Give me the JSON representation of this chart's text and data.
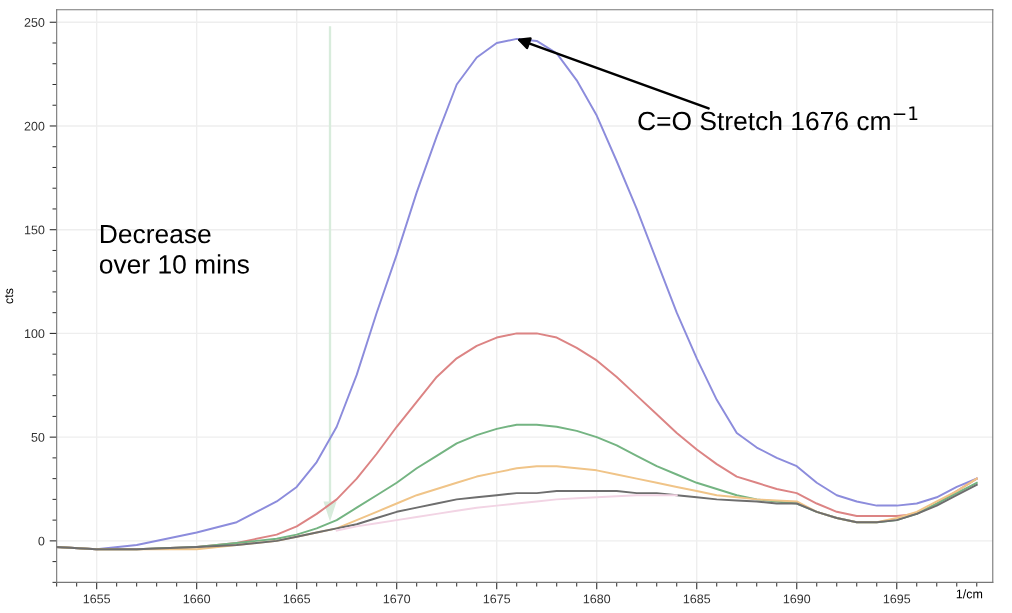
{
  "chart_data": {
    "type": "line",
    "xlabel": "1/cm",
    "ylabel": "cts",
    "xlim": [
      1653,
      1699.8
    ],
    "ylim": [
      -20,
      256
    ],
    "xticks": [
      1655,
      1660,
      1665,
      1670,
      1675,
      1680,
      1685,
      1690,
      1695
    ],
    "yticks": [
      0,
      50,
      100,
      150,
      200,
      250
    ],
    "grid": true,
    "line_style": "solid",
    "annotations": [
      "Decrease\nover 10 mins",
      {
        "text": "C=O Stretch 1676 cm$^{−1}$",
        "x": 1676,
        "y": 242
      }
    ],
    "x": [
      1653,
      1655,
      1657,
      1660,
      1662,
      1664,
      1665,
      1666,
      1667,
      1668,
      1669,
      1670,
      1671,
      1672,
      1673,
      1674,
      1675,
      1676,
      1677,
      1678,
      1679,
      1680,
      1681,
      1682,
      1683,
      1684,
      1685,
      1686,
      1687,
      1688,
      1689,
      1690,
      1691,
      1692,
      1693,
      1694,
      1695,
      1696,
      1697,
      1698,
      1699
    ],
    "series": [
      {
        "color": "#8c8cdc",
        "values": [
          -3,
          -4,
          -2,
          4,
          9,
          19,
          26,
          38,
          55,
          80,
          110,
          138,
          168,
          195,
          220,
          233,
          240,
          242,
          241,
          235,
          222,
          205,
          183,
          160,
          135,
          110,
          88,
          68,
          52,
          45,
          40,
          36,
          28,
          22,
          19,
          17,
          17,
          18,
          21,
          26,
          30
        ]
      },
      {
        "color": "#dc8484",
        "values": [
          -3,
          -4,
          -4,
          -3,
          -1,
          3,
          7,
          13,
          20,
          30,
          42,
          55,
          67,
          79,
          88,
          94,
          98,
          100,
          100,
          98,
          93,
          87,
          79,
          70,
          61,
          52,
          44,
          37,
          31,
          28,
          25,
          23,
          18,
          14,
          12,
          12,
          12,
          13,
          18,
          24,
          30
        ]
      },
      {
        "color": "#74b482",
        "values": [
          -3,
          -4,
          -4,
          -3,
          -1,
          1,
          3,
          6,
          10,
          16,
          22,
          28,
          35,
          41,
          47,
          51,
          54,
          56,
          56,
          55,
          53,
          50,
          46,
          41,
          36,
          32,
          28,
          25,
          22,
          20,
          19,
          18,
          14,
          11,
          9,
          9,
          10,
          13,
          18,
          23,
          28
        ]
      },
      {
        "color": "#f0c488",
        "values": [
          -3,
          -4,
          -4,
          -4,
          -2,
          0,
          2,
          4,
          6,
          10,
          14,
          18,
          22,
          25,
          28,
          31,
          33,
          35,
          36,
          36,
          35,
          34,
          32,
          30,
          28,
          26,
          24,
          22,
          21,
          20,
          19.5,
          19,
          14,
          11,
          9,
          9,
          11,
          14,
          19,
          24,
          30
        ]
      },
      {
        "color": "#6e6e6e",
        "values": [
          -3,
          -4,
          -4,
          -3,
          -2,
          0,
          2,
          4,
          6,
          8,
          11,
          14,
          16,
          18,
          20,
          21,
          22,
          23,
          23,
          24,
          24,
          24,
          24,
          23,
          23,
          22,
          21,
          20,
          19.5,
          19,
          18,
          18,
          14,
          11,
          9,
          9,
          10,
          13,
          17,
          22,
          27
        ]
      },
      {
        "color": "#f2d4e4",
        "values": [
          null,
          null,
          null,
          null,
          null,
          null,
          null,
          null,
          5,
          7,
          8.5,
          10,
          11.5,
          13,
          14.5,
          16,
          17,
          18,
          19,
          20,
          20.5,
          21,
          21.5,
          22,
          22,
          22,
          null,
          null,
          null,
          null,
          null,
          null,
          null,
          null,
          null,
          null,
          null,
          null,
          null,
          null,
          null
        ]
      }
    ]
  }
}
